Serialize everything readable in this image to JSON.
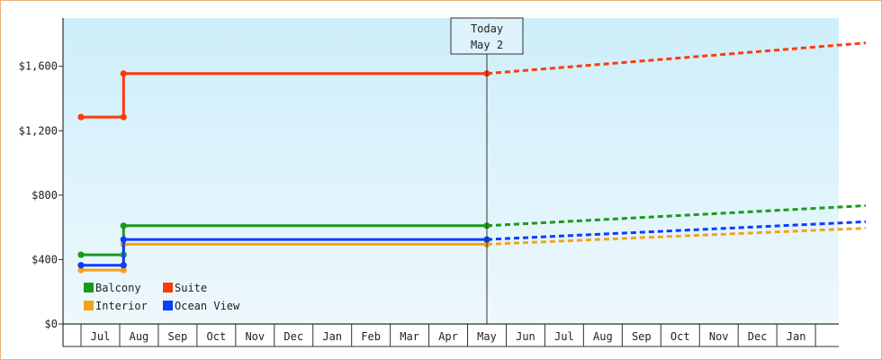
{
  "chart_data": {
    "type": "line",
    "title": "",
    "xlabel": "",
    "ylabel": "",
    "ylim": [
      0,
      1900
    ],
    "yticks": [
      0,
      400,
      800,
      1200,
      1600
    ],
    "ytick_labels": [
      "$0",
      "$400",
      "$800",
      "$1,200",
      "$1,600"
    ],
    "x_months": [
      "Jul",
      "Aug",
      "Sep",
      "Oct",
      "Nov",
      "Dec",
      "Jan",
      "Feb",
      "Mar",
      "Apr",
      "May",
      "Jun",
      "Jul",
      "Aug",
      "Sep",
      "Oct",
      "Nov",
      "Dec",
      "Jan"
    ],
    "marker": {
      "line1": "Today",
      "line2": "May 2",
      "x": 10.0
    },
    "background_gradient": [
      "#cdeefa",
      "#eef8fd"
    ],
    "legend_position": "bottom-left",
    "series": [
      {
        "name": "Balcony",
        "color": "#1a9a1a",
        "actual": [
          [
            -0.5,
            430
          ],
          [
            0.6,
            430
          ],
          [
            0.6,
            610
          ],
          [
            10.0,
            610
          ]
        ],
        "forecast": [
          [
            10.0,
            610
          ],
          [
            19.8,
            735
          ]
        ]
      },
      {
        "name": "Suite",
        "color": "#ff3a0a",
        "actual": [
          [
            -0.5,
            1285
          ],
          [
            0.6,
            1285
          ],
          [
            0.6,
            1555
          ],
          [
            10.0,
            1555
          ]
        ],
        "forecast": [
          [
            10.0,
            1555
          ],
          [
            19.8,
            1745
          ]
        ]
      },
      {
        "name": "Interior",
        "color": "#f5a21a",
        "actual": [
          [
            -0.5,
            335
          ],
          [
            0.6,
            335
          ],
          [
            0.6,
            495
          ],
          [
            10.0,
            495
          ]
        ],
        "forecast": [
          [
            10.0,
            495
          ],
          [
            19.8,
            595
          ]
        ]
      },
      {
        "name": "Ocean View",
        "color": "#0a3dff",
        "actual": [
          [
            -0.5,
            365
          ],
          [
            0.6,
            365
          ],
          [
            0.6,
            525
          ],
          [
            10.0,
            525
          ]
        ],
        "forecast": [
          [
            10.0,
            525
          ],
          [
            19.8,
            635
          ]
        ]
      }
    ]
  }
}
